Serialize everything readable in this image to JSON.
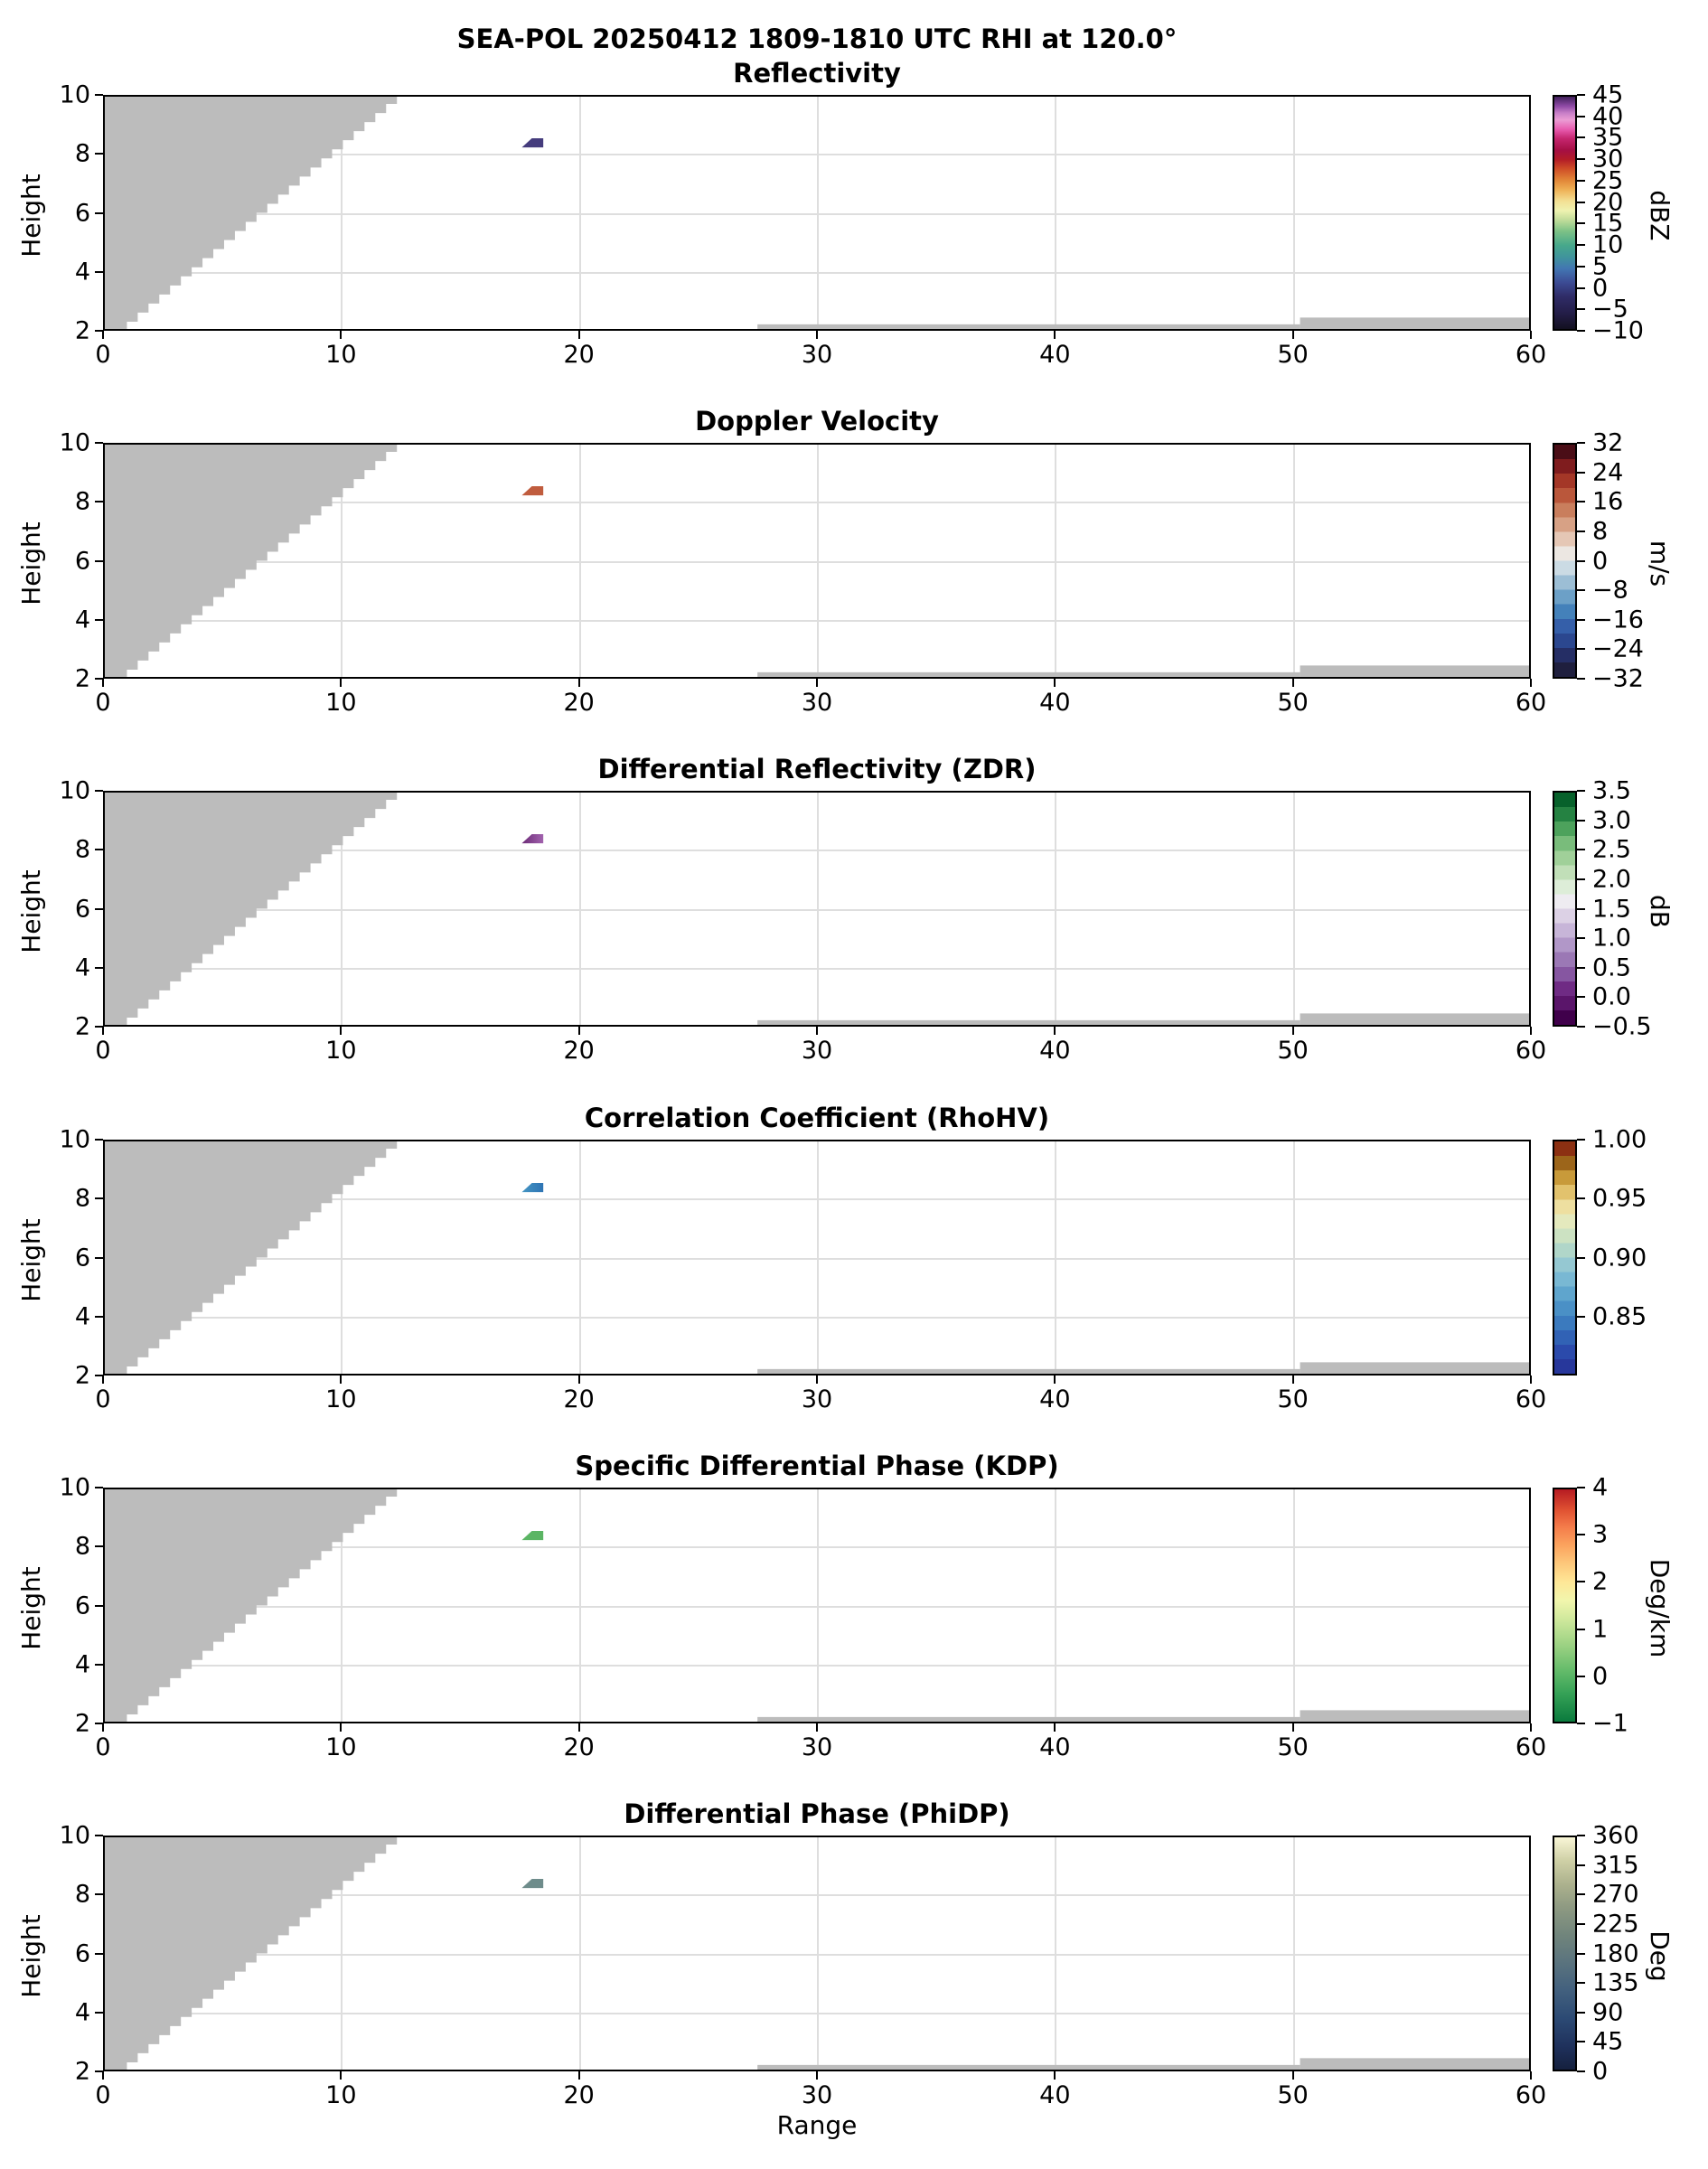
{
  "suptitle": "SEA-POL 20250412 1809-1810 UTC RHI at 120.0°",
  "xlabel": "Range",
  "ylabel": "Height",
  "chart_data": {
    "type": "heatmap",
    "subtype": "radar-RHI-multipanel",
    "x_ticks": [
      "0",
      "10",
      "20",
      "30",
      "40",
      "50",
      "60"
    ],
    "x_tick_vals": [
      0,
      10,
      20,
      30,
      40,
      50,
      60
    ],
    "y_ticks": [
      "2",
      "4",
      "6",
      "8",
      "10"
    ],
    "y_tick_vals": [
      2,
      4,
      6,
      8,
      10
    ],
    "xlim": [
      0,
      60
    ],
    "ylim": [
      2,
      10
    ],
    "grid": true,
    "grid_x": [
      10,
      20,
      30,
      40,
      50
    ],
    "grid_y": [
      4,
      6,
      8
    ],
    "blocked_region": {
      "description": "gray no-data / beam-blockage mask",
      "color": "#bcbcbc",
      "wedge": {
        "base_x": 0.55,
        "base_y": 2,
        "top_x": 12.35,
        "top_y": 10,
        "steps": 26
      },
      "strips": [
        {
          "x0": 27.5,
          "x1": 50.3,
          "y0": 2.0,
          "y1": 2.22
        },
        {
          "x0": 50.3,
          "x1": 60.0,
          "y0": 2.0,
          "y1": 2.45
        }
      ]
    },
    "echo_patch": {
      "description": "small echo cell visible in every panel",
      "range_km": 18.0,
      "height_km": 8.4,
      "polygon": [
        [
          17.6,
          8.22
        ],
        [
          18.02,
          8.53
        ],
        [
          18.5,
          8.53
        ],
        [
          18.5,
          8.22
        ]
      ]
    },
    "panels": [
      {
        "title": "Reflectivity",
        "unit": "dBZ",
        "cbar_ticks": [
          "45",
          "40",
          "35",
          "30",
          "25",
          "20",
          "15",
          "10",
          "5",
          "0",
          "−5",
          "−10"
        ],
        "cbar_tick_pos": [
          0,
          0.0909,
          0.1818,
          0.2727,
          0.3636,
          0.4545,
          0.5455,
          0.6364,
          0.7273,
          0.8182,
          0.9091,
          1
        ],
        "cbar_range": [
          -10,
          45
        ],
        "cbar_style": "gradient",
        "cbar_colors": [
          [
            0,
            "#131020"
          ],
          [
            0.07,
            "#241e49"
          ],
          [
            0.14,
            "#2f2c67"
          ],
          [
            0.2,
            "#3c4b94"
          ],
          [
            0.26,
            "#4276b2"
          ],
          [
            0.31,
            "#40949c"
          ],
          [
            0.36,
            "#47a88b"
          ],
          [
            0.42,
            "#7cc186"
          ],
          [
            0.47,
            "#c2dd9a"
          ],
          [
            0.51,
            "#eff2b0"
          ],
          [
            0.55,
            "#f3e094"
          ],
          [
            0.6,
            "#eeb055"
          ],
          [
            0.64,
            "#e28738"
          ],
          [
            0.69,
            "#cf4d27"
          ],
          [
            0.73,
            "#b31c27"
          ],
          [
            0.77,
            "#a50f44"
          ],
          [
            0.82,
            "#c5266f"
          ],
          [
            0.86,
            "#e85caf"
          ],
          [
            0.9,
            "#eb9cd4"
          ],
          [
            0.93,
            "#c77ec7"
          ],
          [
            0.96,
            "#8e49a5"
          ],
          [
            1,
            "#40205a"
          ]
        ],
        "patch_colors": [
          "#453c7d"
        ]
      },
      {
        "title": "Doppler Velocity",
        "unit": "m/s",
        "cbar_ticks": [
          "32",
          "24",
          "16",
          "8",
          "0",
          "−8",
          "−16",
          "−24",
          "−32"
        ],
        "cbar_tick_pos": [
          0,
          0.125,
          0.25,
          0.375,
          0.5,
          0.625,
          0.75,
          0.875,
          1
        ],
        "cbar_range": [
          -32,
          32
        ],
        "cbar_style": "bands",
        "cbar_colors": [
          "#1f1f3e",
          "#252e65",
          "#2b478f",
          "#355fa9",
          "#4481ba",
          "#6ca0c7",
          "#9cbed5",
          "#cbdbe4",
          "#ece7e2",
          "#e5c7b5",
          "#d7a185",
          "#c97e5d",
          "#ba573b",
          "#a43727",
          "#7f1c1e",
          "#4a0d16"
        ],
        "patch_colors": [
          "#c05c3e"
        ]
      },
      {
        "title": "Differential Reflectivity (ZDR)",
        "unit": "dB",
        "cbar_ticks": [
          "3.5",
          "3.0",
          "2.5",
          "2.0",
          "1.5",
          "1.0",
          "0.5",
          "0.0",
          "−0.5"
        ],
        "cbar_tick_pos": [
          0,
          0.125,
          0.25,
          0.375,
          0.5,
          0.625,
          0.75,
          0.875,
          1
        ],
        "cbar_range": [
          -0.5,
          3.5
        ],
        "cbar_style": "bands",
        "cbar_colors": [
          "#40004b",
          "#5a156a",
          "#6f2b84",
          "#8656a1",
          "#9b78b5",
          "#b197c8",
          "#c7b5d8",
          "#dcd1e5",
          "#eeecf1",
          "#ddedd8",
          "#c1dfb8",
          "#a0d099",
          "#79bc7b",
          "#4da25c",
          "#258242",
          "#07612b"
        ],
        "patch_colors": [
          "#6b2a76",
          "#a263ae"
        ]
      },
      {
        "title": "Correlation Coefficient (RhoHV)",
        "unit": "",
        "cbar_ticks": [
          "1.00",
          "0.95",
          "0.90",
          "0.85"
        ],
        "cbar_tick_pos": [
          0,
          0.25,
          0.5,
          0.75
        ],
        "cbar_range": [
          0.8,
          1.0
        ],
        "cbar_style": "bands",
        "cbar_colors": [
          "#27379b",
          "#2b4aab",
          "#3162b5",
          "#3b7abe",
          "#4a90c6",
          "#5fa5cd",
          "#79b8d3",
          "#95c8d2",
          "#b0d6c9",
          "#cce2c2",
          "#e4e9bd",
          "#eedfa0",
          "#e2c26d",
          "#c89a3a",
          "#9c651a",
          "#8c3012"
        ],
        "patch_colors": [
          "#4596c3",
          "#2e74b4"
        ]
      },
      {
        "title": "Specific Differential Phase (KDP)",
        "unit": "Deg/km",
        "cbar_ticks": [
          "4",
          "3",
          "2",
          "1",
          "0",
          "−1"
        ],
        "cbar_tick_pos": [
          0,
          0.2,
          0.4,
          0.6,
          0.8,
          1
        ],
        "cbar_range": [
          -1,
          4
        ],
        "cbar_style": "gradient",
        "cbar_colors": [
          [
            0,
            "#0a7a3d"
          ],
          [
            0.12,
            "#35a156"
          ],
          [
            0.22,
            "#64bb6a"
          ],
          [
            0.33,
            "#9cd283"
          ],
          [
            0.44,
            "#cfe89c"
          ],
          [
            0.52,
            "#f1f6ad"
          ],
          [
            0.6,
            "#fee797"
          ],
          [
            0.68,
            "#fdc87b"
          ],
          [
            0.76,
            "#fba35e"
          ],
          [
            0.84,
            "#f47b4a"
          ],
          [
            0.91,
            "#e05232"
          ],
          [
            1,
            "#b61b22"
          ]
        ],
        "patch_colors": [
          "#5bb564"
        ]
      },
      {
        "title": "Differential Phase (PhiDP)",
        "unit": "Deg",
        "cbar_ticks": [
          "360",
          "315",
          "270",
          "225",
          "180",
          "135",
          "90",
          "45",
          "0"
        ],
        "cbar_tick_pos": [
          0,
          0.125,
          0.25,
          0.375,
          0.5,
          0.625,
          0.75,
          0.875,
          1
        ],
        "cbar_range": [
          0,
          360
        ],
        "cbar_style": "gradient",
        "cbar_colors": [
          [
            0,
            "#15203e"
          ],
          [
            0.1,
            "#1f315c"
          ],
          [
            0.22,
            "#2c4a74"
          ],
          [
            0.34,
            "#42607e"
          ],
          [
            0.46,
            "#5a737e"
          ],
          [
            0.58,
            "#71857c"
          ],
          [
            0.7,
            "#8e9a82"
          ],
          [
            0.8,
            "#adb28e"
          ],
          [
            0.9,
            "#cfd0a6"
          ],
          [
            1,
            "#f9f6d6"
          ]
        ],
        "patch_colors": [
          "#6e8c8b"
        ]
      }
    ]
  }
}
